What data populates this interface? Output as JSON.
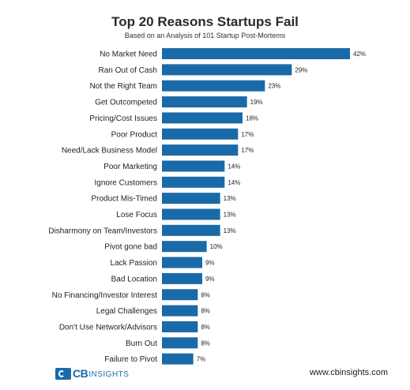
{
  "chart_data": {
    "type": "bar",
    "orientation": "horizontal",
    "title": "Top 20 Reasons Startups Fail",
    "subtitle": "Based on an Analysis of 101 Startup Post-Mortems",
    "value_suffix": "%",
    "xlim": [
      0,
      42
    ],
    "grid": false,
    "bar_color": "#1a6aa8",
    "categories": [
      "No Market Need",
      "Ran Out of Cash",
      "Not the Right Team",
      "Get Outcompeted",
      "Pricing/Cost Issues",
      "Poor Product",
      "Need/Lack Business Model",
      "Poor Marketing",
      "Ignore Customers",
      "Product Mis-Timed",
      "Lose Focus",
      "Disharmony on Team/Investors",
      "Pivot gone bad",
      "Lack Passion",
      "Bad Location",
      "No Financing/Investor Interest",
      "Legal Challenges",
      "Don't Use Network/Advisors",
      "Burn Out",
      "Failure to Pivot"
    ],
    "values": [
      42,
      29,
      23,
      19,
      18,
      17,
      17,
      14,
      14,
      13,
      13,
      13,
      10,
      9,
      9,
      8,
      8,
      8,
      8,
      7
    ]
  },
  "footer": {
    "logo_cb": "CB",
    "logo_insights": "INSIGHTS",
    "logo_icon": "cb-insights-logo-icon",
    "website": "www.cbinsights.com"
  }
}
